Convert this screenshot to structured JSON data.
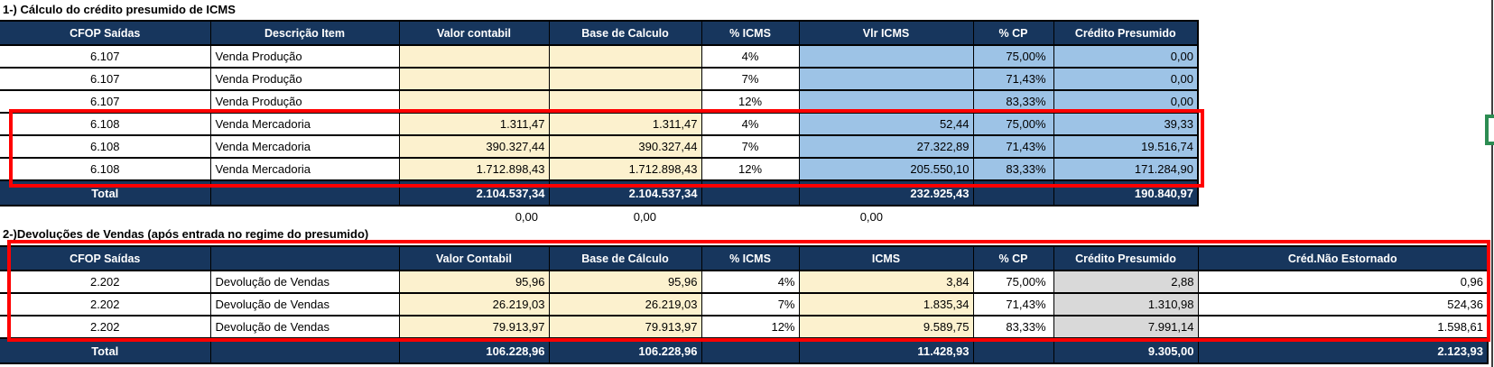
{
  "colors": {
    "navy": "#17365D",
    "beige": "#FCF1CE",
    "blue": "#9DC3E6",
    "gray": "#D9D9D9",
    "red": "#FF0000",
    "green": "#2C8C52"
  },
  "section1": {
    "title": "1-) Cálculo do crédito presumido de ICMS",
    "columns": [
      "CFOP Saídas",
      "Descrição Item",
      "Valor contabil",
      "Base de Calculo",
      "% ICMS",
      "Vlr ICMS",
      "% CP",
      "Crédito Presumido"
    ],
    "rows": [
      {
        "cfop": "6.107",
        "desc": "Venda Produção",
        "vc": "",
        "bc": "",
        "picms": "4%",
        "vlricms": "",
        "pcp": "75,00%",
        "cp": "0,00"
      },
      {
        "cfop": "6.107",
        "desc": "Venda Produção",
        "vc": "",
        "bc": "",
        "picms": "7%",
        "vlricms": "",
        "pcp": "71,43%",
        "cp": "0,00"
      },
      {
        "cfop": "6.107",
        "desc": "Venda Produção",
        "vc": "",
        "bc": "",
        "picms": "12%",
        "vlricms": "",
        "pcp": "83,33%",
        "cp": "0,00"
      },
      {
        "cfop": "6.108",
        "desc": "Venda Mercadoria",
        "vc": "1.311,47",
        "bc": "1.311,47",
        "picms": "4%",
        "vlricms": "52,44",
        "pcp": "75,00%",
        "cp": "39,33"
      },
      {
        "cfop": "6.108",
        "desc": "Venda Mercadoria",
        "vc": "390.327,44",
        "bc": "390.327,44",
        "picms": "7%",
        "vlricms": "27.322,89",
        "pcp": "71,43%",
        "cp": "19.516,74"
      },
      {
        "cfop": "6.108",
        "desc": "Venda Mercadoria",
        "vc": "1.712.898,43",
        "bc": "1.712.898,43",
        "picms": "12%",
        "vlricms": "205.550,10",
        "pcp": "83,33%",
        "cp": "171.284,90"
      }
    ],
    "total": {
      "label": "Total",
      "desc": "",
      "vc": "2.104.537,34",
      "bc": "2.104.537,34",
      "picms": "",
      "vlricms": "232.925,43",
      "pcp": "",
      "cp": "190.840,97"
    },
    "check_row": {
      "vc": "0,00",
      "bc": "0,00",
      "vlricms": "0,00"
    }
  },
  "section2": {
    "title": "2-)Devoluções de Vendas (após entrada no regime do presumido)",
    "columns": [
      "CFOP Saídas",
      "",
      "Valor Contabil",
      "Base de Cálculo",
      "% ICMS",
      "ICMS",
      "% CP",
      "Crédito Presumido",
      "Créd.Não Estornado"
    ],
    "rows": [
      {
        "cfop": "2.202",
        "desc": "Devolução de Vendas",
        "vc": "95,96",
        "bc": "95,96",
        "picms": "4%",
        "icms": "3,84",
        "pcp": "75,00%",
        "cp": "2,88",
        "cne": "0,96"
      },
      {
        "cfop": "2.202",
        "desc": "Devolução de Vendas",
        "vc": "26.219,03",
        "bc": "26.219,03",
        "picms": "7%",
        "icms": "1.835,34",
        "pcp": "71,43%",
        "cp": "1.310,98",
        "cne": "524,36"
      },
      {
        "cfop": "2.202",
        "desc": "Devolução de Vendas",
        "vc": "79.913,97",
        "bc": "79.913,97",
        "picms": "12%",
        "icms": "9.589,75",
        "pcp": "83,33%",
        "cp": "7.991,14",
        "cne": "1.598,61"
      }
    ],
    "total": {
      "label": "Total",
      "desc": "",
      "vc": "106.228,96",
      "bc": "106.228,96",
      "picms": "",
      "icms": "11.428,93",
      "pcp": "",
      "cp": "9.305,00",
      "cne": "2.123,93"
    }
  }
}
